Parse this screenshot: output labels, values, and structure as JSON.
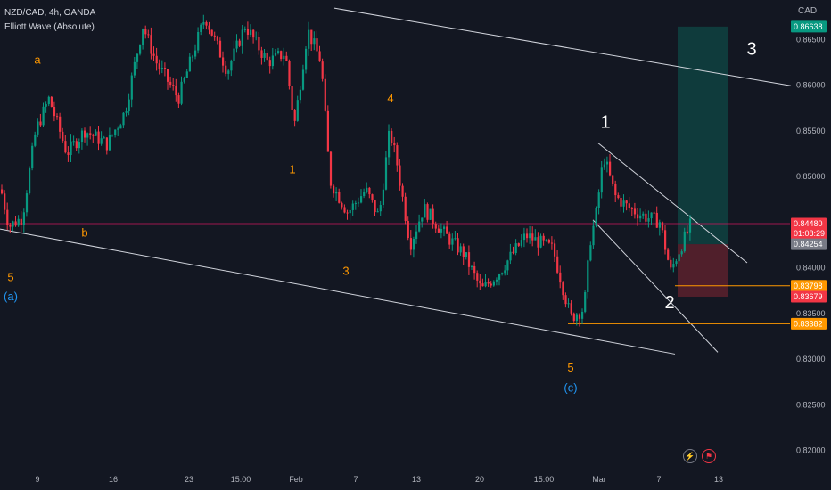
{
  "header": {
    "symbol": "NZD/CAD, 4h, OANDA",
    "indicator": "Elliott Wave (Absolute)",
    "currency": "CAD"
  },
  "icons": [
    "lightning-icon",
    "flag-icon"
  ],
  "chart_data": {
    "type": "candlestick",
    "ylim": [
      0.8185,
      0.868
    ],
    "yticks": [
      0.82,
      0.825,
      0.83,
      0.835,
      0.84,
      0.845,
      0.85,
      0.855,
      0.86,
      0.865
    ],
    "ytick_labels": [
      "0.82000",
      "0.82500",
      "0.83000",
      "0.83500",
      "0.84000",
      "0.84500",
      "0.85000",
      "0.85500",
      "0.86000",
      "0.86500"
    ],
    "x_ticks": [
      "9",
      "16",
      "23",
      "15:00",
      "Feb",
      "7",
      "13",
      "20",
      "15:00",
      "Mar",
      "7",
      "13"
    ],
    "price_path": [
      [
        0,
        0.849
      ],
      [
        10,
        0.8445
      ],
      [
        25,
        0.8455
      ],
      [
        40,
        0.855
      ],
      [
        55,
        0.8585
      ],
      [
        75,
        0.8525
      ],
      [
        95,
        0.855
      ],
      [
        120,
        0.8535
      ],
      [
        140,
        0.857
      ],
      [
        160,
        0.8665
      ],
      [
        175,
        0.8625
      ],
      [
        200,
        0.8585
      ],
      [
        230,
        0.8675
      ],
      [
        255,
        0.8615
      ],
      [
        275,
        0.8665
      ],
      [
        300,
        0.8625
      ],
      [
        320,
        0.8635
      ],
      [
        330,
        0.8555
      ],
      [
        345,
        0.866
      ],
      [
        360,
        0.8625
      ],
      [
        370,
        0.8495
      ],
      [
        390,
        0.846
      ],
      [
        410,
        0.8485
      ],
      [
        425,
        0.8455
      ],
      [
        437,
        0.855
      ],
      [
        445,
        0.8515
      ],
      [
        460,
        0.8425
      ],
      [
        475,
        0.8465
      ],
      [
        500,
        0.8435
      ],
      [
        520,
        0.8415
      ],
      [
        540,
        0.8375
      ],
      [
        560,
        0.8395
      ],
      [
        590,
        0.8435
      ],
      [
        620,
        0.842
      ],
      [
        640,
        0.8345
      ],
      [
        655,
        0.8355
      ],
      [
        662,
        0.843
      ],
      [
        668,
        0.8455
      ],
      [
        677,
        0.8522
      ],
      [
        690,
        0.8478
      ],
      [
        705,
        0.8465
      ],
      [
        725,
        0.8455
      ],
      [
        740,
        0.845
      ],
      [
        752,
        0.8395
      ],
      [
        760,
        0.8415
      ],
      [
        775,
        0.8448
      ]
    ],
    "levels": [
      {
        "value": 0.8448,
        "label": "0.84480",
        "countdown": "01:08:29",
        "color": "#f23645"
      },
      {
        "value": 0.84254,
        "label": "0.84254",
        "color": "#787b86"
      },
      {
        "value": 0.83798,
        "label": "0.83798",
        "color": "#ff9800"
      },
      {
        "value": 0.83679,
        "label": "0.83679",
        "color": "#f23645"
      },
      {
        "value": 0.83382,
        "label": "0.83382",
        "color": "#ff9800"
      },
      {
        "value": 0.86638,
        "label": "0.86638",
        "color": "#089981"
      }
    ],
    "position": {
      "entry": 0.84254,
      "target": 0.86638,
      "stop": 0.83679
    },
    "wave_labels": [
      {
        "text": "a",
        "date_pos": 42,
        "price": 0.8623,
        "color": "#ff9800"
      },
      {
        "text": "b",
        "date_pos": 95,
        "price": 0.8434,
        "color": "#ff9800"
      },
      {
        "text": "5",
        "date_pos": 12,
        "price": 0.8385,
        "color": "#ff9800"
      },
      {
        "text": "(a)",
        "date_pos": 12,
        "price": 0.8364,
        "color": "#2196f3"
      },
      {
        "text": "1",
        "date_pos": 328,
        "price": 0.8503,
        "color": "#ff9800"
      },
      {
        "text": "4",
        "date_pos": 438,
        "price": 0.8581,
        "color": "#ff9800"
      },
      {
        "text": "3",
        "date_pos": 388,
        "price": 0.8392,
        "color": "#ff9800"
      },
      {
        "text": "5",
        "date_pos": 640,
        "price": 0.8286,
        "color": "#ff9800"
      },
      {
        "text": "(c)",
        "date_pos": 640,
        "price": 0.8264,
        "color": "#2196f3"
      },
      {
        "text": "1",
        "date_pos": 679,
        "price": 0.8553,
        "color": "#ffffff"
      },
      {
        "text": "2",
        "date_pos": 751,
        "price": 0.8355,
        "color": "#ffffff"
      },
      {
        "text": "3",
        "date_pos": 843,
        "price": 0.8633,
        "color": "#ffffff"
      }
    ],
    "trend_lines": [
      {
        "from": [
          0,
          0.8442
        ],
        "to": [
          757,
          0.8305
        ],
        "color": "#d1d4dc"
      },
      {
        "from": [
          375,
          0.8684
        ],
        "to": [
          887,
          0.8599
        ],
        "color": "#d1d4dc"
      },
      {
        "from": [
          671,
          0.8536
        ],
        "to": [
          838,
          0.8405
        ],
        "color": "#d1d4dc"
      },
      {
        "from": [
          665,
          0.8452
        ],
        "to": [
          805,
          0.8307
        ],
        "color": "#d1d4dc"
      }
    ],
    "colors": {
      "up": "#089981",
      "down": "#f23645",
      "bg": "#131722"
    },
    "grid": false
  }
}
